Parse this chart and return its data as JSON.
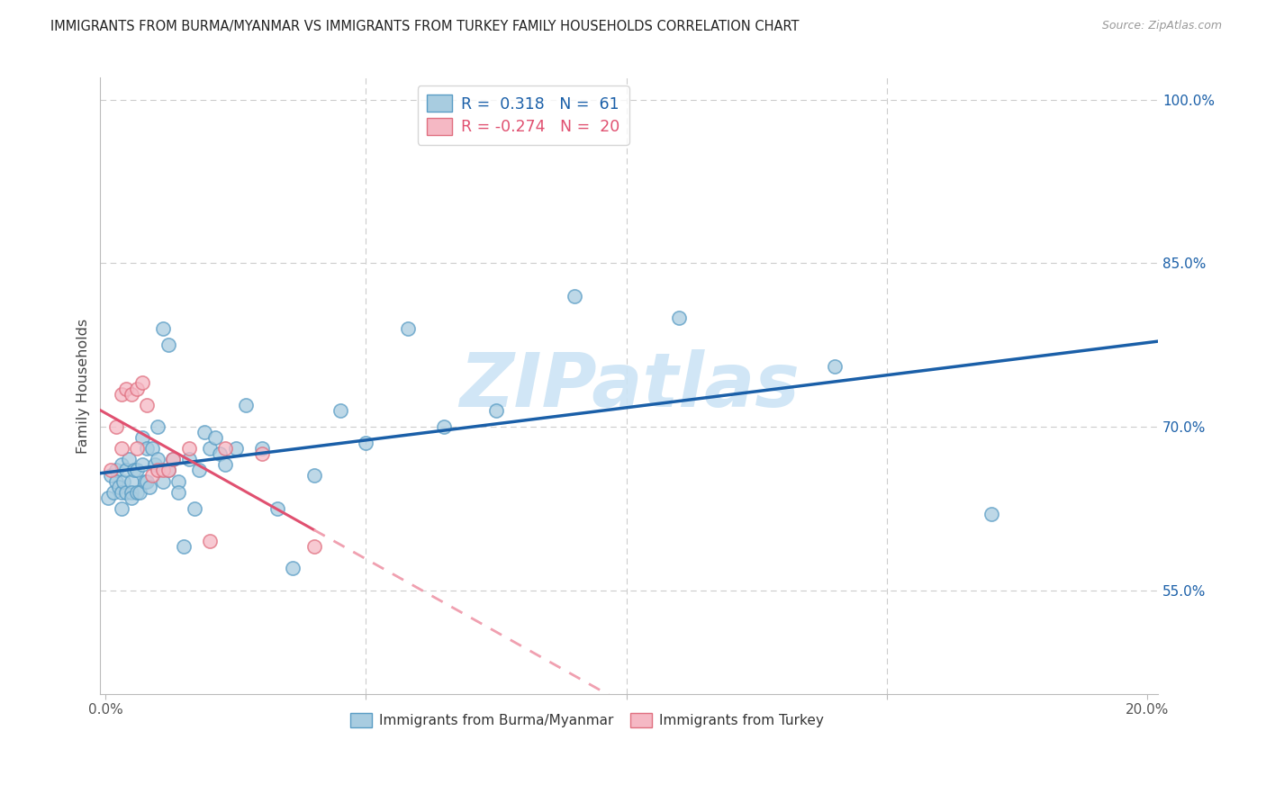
{
  "title": "IMMIGRANTS FROM BURMA/MYANMAR VS IMMIGRANTS FROM TURKEY FAMILY HOUSEHOLDS CORRELATION CHART",
  "source": "Source: ZipAtlas.com",
  "ylabel": "Family Households",
  "ytick_vals": [
    0.55,
    0.7,
    0.85,
    1.0
  ],
  "ytick_labels": [
    "55.0%",
    "70.0%",
    "85.0%",
    "100.0%"
  ],
  "y_min": 0.455,
  "y_max": 1.02,
  "x_min": -0.001,
  "x_max": 0.202,
  "blue_fill": "#a8cce0",
  "blue_edge": "#5a9dc5",
  "pink_fill": "#f5b8c4",
  "pink_edge": "#e07080",
  "blue_line_color": "#1a5fa8",
  "pink_solid_color": "#e05070",
  "pink_dash_color": "#f0a0b0",
  "R_blue": 0.318,
  "N_blue": 61,
  "R_pink": -0.274,
  "N_pink": 20,
  "blue_x": [
    0.0005,
    0.001,
    0.0015,
    0.002,
    0.002,
    0.0025,
    0.003,
    0.003,
    0.003,
    0.0035,
    0.004,
    0.004,
    0.0045,
    0.005,
    0.005,
    0.005,
    0.0055,
    0.006,
    0.006,
    0.0065,
    0.007,
    0.007,
    0.0075,
    0.008,
    0.008,
    0.0085,
    0.009,
    0.0095,
    0.01,
    0.01,
    0.011,
    0.011,
    0.012,
    0.012,
    0.013,
    0.014,
    0.014,
    0.015,
    0.016,
    0.017,
    0.018,
    0.019,
    0.02,
    0.021,
    0.022,
    0.023,
    0.025,
    0.027,
    0.03,
    0.033,
    0.036,
    0.04,
    0.045,
    0.05,
    0.058,
    0.065,
    0.075,
    0.09,
    0.11,
    0.14,
    0.17
  ],
  "blue_y": [
    0.635,
    0.655,
    0.64,
    0.66,
    0.65,
    0.645,
    0.665,
    0.64,
    0.625,
    0.65,
    0.66,
    0.64,
    0.67,
    0.65,
    0.64,
    0.635,
    0.66,
    0.66,
    0.64,
    0.64,
    0.69,
    0.665,
    0.65,
    0.68,
    0.65,
    0.645,
    0.68,
    0.665,
    0.7,
    0.67,
    0.79,
    0.65,
    0.775,
    0.66,
    0.67,
    0.65,
    0.64,
    0.59,
    0.67,
    0.625,
    0.66,
    0.695,
    0.68,
    0.69,
    0.675,
    0.665,
    0.68,
    0.72,
    0.68,
    0.625,
    0.57,
    0.655,
    0.715,
    0.685,
    0.79,
    0.7,
    0.715,
    0.82,
    0.8,
    0.755,
    0.62
  ],
  "pink_x": [
    0.001,
    0.002,
    0.003,
    0.003,
    0.004,
    0.005,
    0.006,
    0.006,
    0.007,
    0.008,
    0.009,
    0.01,
    0.011,
    0.012,
    0.013,
    0.016,
    0.02,
    0.023,
    0.03,
    0.04
  ],
  "pink_y": [
    0.66,
    0.7,
    0.73,
    0.68,
    0.735,
    0.73,
    0.68,
    0.735,
    0.74,
    0.72,
    0.655,
    0.66,
    0.66,
    0.66,
    0.67,
    0.68,
    0.595,
    0.68,
    0.675,
    0.59
  ],
  "background_color": "#ffffff",
  "watermark_text": "ZIPatlas",
  "watermark_color": "#cce4f5",
  "grid_color": "#cccccc",
  "xtick_minor": [
    0.05,
    0.1,
    0.15
  ]
}
